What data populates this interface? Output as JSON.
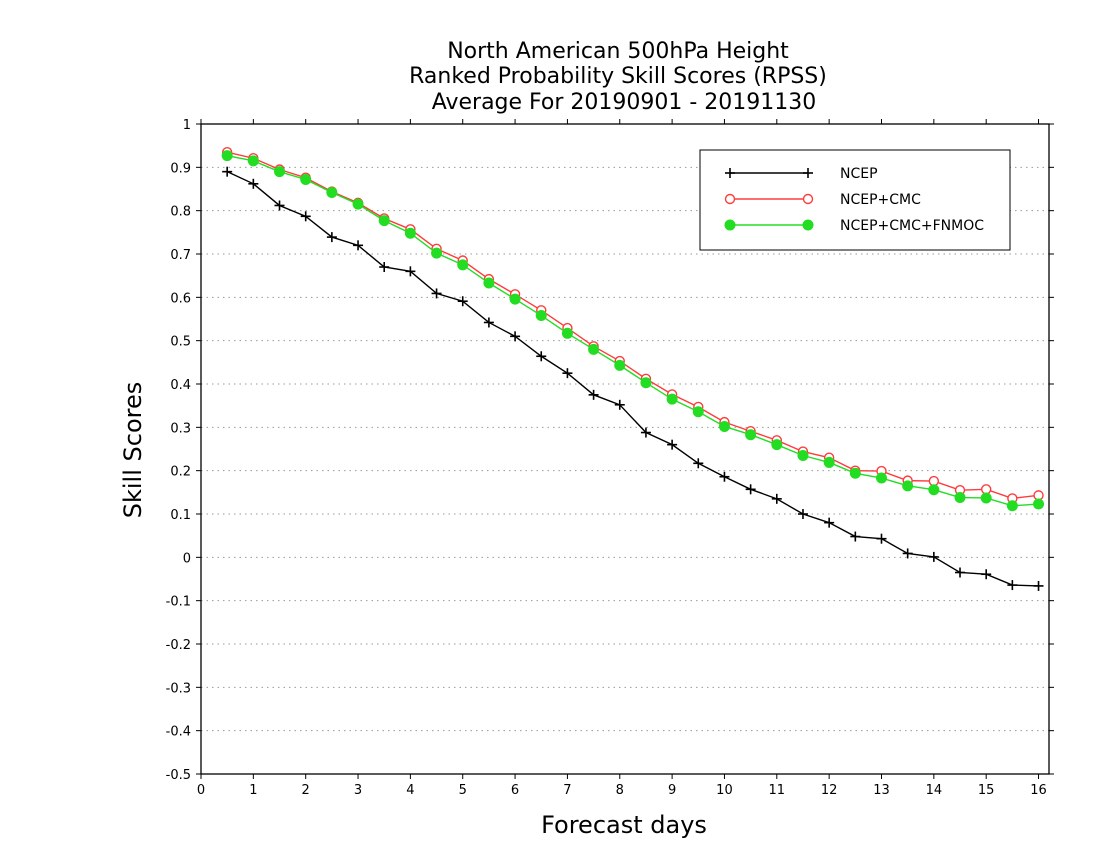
{
  "chart_data": {
    "type": "line",
    "title": [
      "North American 500hPa Height",
      "Ranked Probability Skill Scores (RPSS)",
      "Average For 20190901 - 20191130"
    ],
    "xlabel": "Forecast days",
    "ylabel": "Skill Scores",
    "xlim": [
      0,
      16.2
    ],
    "ylim": [
      -0.5,
      1
    ],
    "xticks": [
      0,
      1,
      2,
      3,
      4,
      5,
      6,
      7,
      8,
      9,
      10,
      11,
      12,
      13,
      14,
      15,
      16
    ],
    "xtick_labels": [
      "0",
      "1",
      "2",
      "3",
      "4",
      "5",
      "6",
      "7",
      "8",
      "9",
      "10",
      "11",
      "12",
      "13",
      "14",
      "15",
      "16"
    ],
    "yticks": [
      -0.5,
      -0.4,
      -0.3,
      -0.2,
      -0.1,
      0,
      0.1,
      0.2,
      0.3,
      0.4,
      0.5,
      0.6,
      0.7,
      0.8,
      0.9,
      1
    ],
    "ytick_labels": [
      "-0.5",
      "-0.4",
      "-0.3",
      "-0.2",
      "-0.1",
      "0",
      "0.1",
      "0.2",
      "0.3",
      "0.4",
      "0.5",
      "0.6",
      "0.7",
      "0.8",
      "0.9",
      "1"
    ],
    "grid": "horizontal dotted",
    "legend_position": "top-right",
    "x": [
      0.5,
      1,
      1.5,
      2,
      2.5,
      3,
      3.5,
      4,
      4.5,
      5,
      5.5,
      6,
      6.5,
      7,
      7.5,
      8,
      8.5,
      9,
      9.5,
      10,
      10.5,
      11,
      11.5,
      12,
      12.5,
      13,
      13.5,
      14,
      14.5,
      15,
      15.5,
      16
    ],
    "series": [
      {
        "name": "NCEP",
        "color": "#000000",
        "marker": "plus",
        "values": [
          0.89,
          0.862,
          0.812,
          0.787,
          0.739,
          0.72,
          0.67,
          0.66,
          0.609,
          0.591,
          0.542,
          0.51,
          0.464,
          0.425,
          0.375,
          0.352,
          0.288,
          0.26,
          0.217,
          0.186,
          0.157,
          0.135,
          0.1,
          0.08,
          0.048,
          0.043,
          0.009,
          0.001,
          -0.035,
          -0.039,
          -0.064,
          -0.066
        ]
      },
      {
        "name": "NCEP+CMC",
        "color": "#ff3b3b",
        "marker": "open-circle",
        "values": [
          0.935,
          0.921,
          0.895,
          0.876,
          0.844,
          0.818,
          0.782,
          0.757,
          0.712,
          0.685,
          0.642,
          0.607,
          0.57,
          0.529,
          0.487,
          0.453,
          0.412,
          0.376,
          0.347,
          0.312,
          0.291,
          0.27,
          0.244,
          0.23,
          0.2,
          0.199,
          0.177,
          0.176,
          0.155,
          0.157,
          0.136,
          0.143
        ]
      },
      {
        "name": "NCEP+CMC+FNMOC",
        "color": "#22dd22",
        "marker": "filled-circle",
        "values": [
          0.927,
          0.915,
          0.89,
          0.872,
          0.842,
          0.815,
          0.777,
          0.748,
          0.702,
          0.675,
          0.633,
          0.596,
          0.558,
          0.517,
          0.48,
          0.443,
          0.403,
          0.365,
          0.336,
          0.302,
          0.283,
          0.26,
          0.235,
          0.219,
          0.194,
          0.183,
          0.165,
          0.156,
          0.138,
          0.137,
          0.119,
          0.123
        ]
      }
    ]
  }
}
